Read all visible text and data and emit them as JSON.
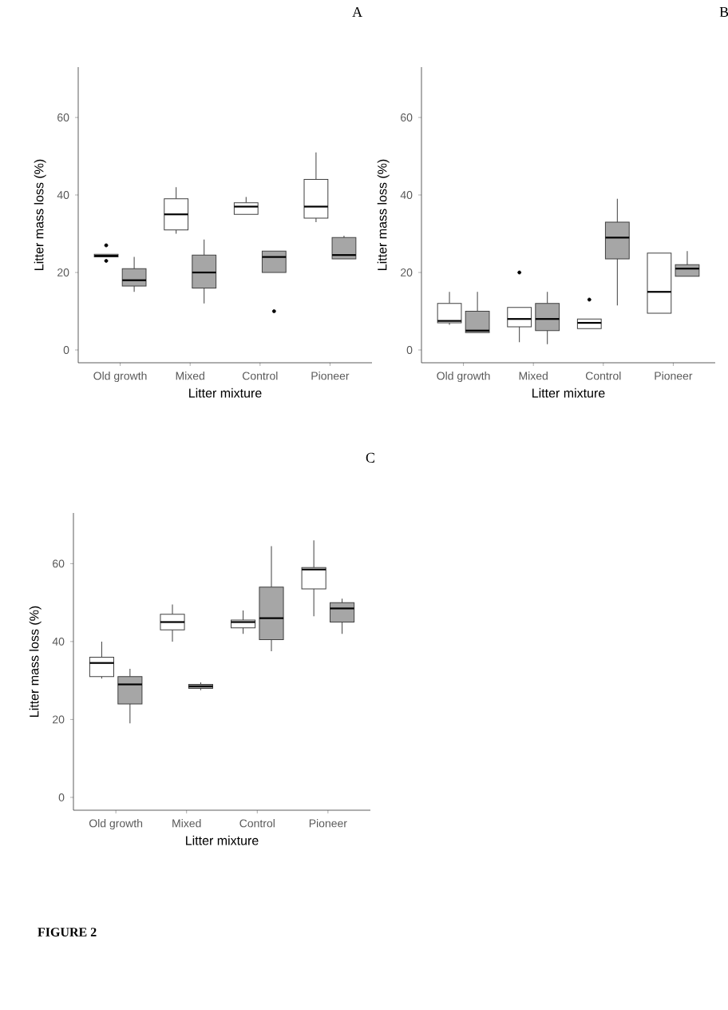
{
  "chart_data": [
    {
      "type": "box",
      "title": "A",
      "xlabel": "Litter mixture",
      "ylabel": "Litter mass loss (%)",
      "categories": [
        "Old growth",
        "Mixed",
        "Control",
        "Pioneer"
      ],
      "ylim": [
        -3.3,
        73
      ],
      "yticks": [
        0,
        20,
        40,
        60
      ],
      "series": [
        {
          "color": "#ffffff",
          "boxes": [
            {
              "low": 24,
              "q1": 24,
              "median": 24.3,
              "q3": 24.7,
              "high": 24.7,
              "outliers": [
                27,
                23
              ]
            },
            {
              "low": 30,
              "q1": 31,
              "median": 35,
              "q3": 39,
              "high": 42
            },
            {
              "low": 35,
              "q1": 35,
              "median": 37,
              "q3": 38,
              "high": 39.5
            },
            {
              "low": 33,
              "q1": 34,
              "median": 37,
              "q3": 44,
              "high": 51
            }
          ]
        },
        {
          "color": "#a6a6a6",
          "boxes": [
            {
              "low": 15,
              "q1": 16.5,
              "median": 18,
              "q3": 21,
              "high": 24
            },
            {
              "low": 12,
              "q1": 16,
              "median": 20,
              "q3": 24.5,
              "high": 28.5
            },
            {
              "low": 20,
              "q1": 20,
              "median": 24,
              "q3": 25.5,
              "high": 25.5,
              "outliers": [
                10
              ]
            },
            {
              "low": 23.5,
              "q1": 23.5,
              "median": 24.5,
              "q3": 29,
              "high": 29.5
            }
          ]
        }
      ]
    },
    {
      "type": "box",
      "title": "B",
      "xlabel": "Litter mixture",
      "ylabel": "Litter mass loss (%)",
      "categories": [
        "Old growth",
        "Mixed",
        "Control",
        "Pioneer"
      ],
      "ylim": [
        -3.3,
        73
      ],
      "yticks": [
        0,
        20,
        40,
        60
      ],
      "series": [
        {
          "color": "#ffffff",
          "boxes": [
            {
              "low": 6.5,
              "q1": 7,
              "median": 7.5,
              "q3": 12,
              "high": 15
            },
            {
              "low": 2,
              "q1": 6,
              "median": 8,
              "q3": 11,
              "high": 11,
              "outliers": [
                20
              ]
            },
            {
              "low": 5.5,
              "q1": 5.5,
              "median": 7,
              "q3": 8,
              "high": 8,
              "outliers": [
                13
              ]
            },
            {
              "low": 9.5,
              "q1": 9.5,
              "median": 15,
              "q3": 25,
              "high": 25
            }
          ]
        },
        {
          "color": "#a6a6a6",
          "boxes": [
            {
              "low": 4.5,
              "q1": 4.5,
              "median": 5,
              "q3": 10,
              "high": 15
            },
            {
              "low": 1.5,
              "q1": 5,
              "median": 8,
              "q3": 12,
              "high": 15
            },
            {
              "low": 11.5,
              "q1": 23.5,
              "median": 29,
              "q3": 33,
              "high": 39
            },
            {
              "low": 19,
              "q1": 19,
              "median": 21,
              "q3": 22,
              "high": 25.5
            }
          ]
        }
      ]
    },
    {
      "type": "box",
      "title": "C",
      "xlabel": "Litter mixture",
      "ylabel": "Litter mass loss (%)",
      "categories": [
        "Old growth",
        "Mixed",
        "Control",
        "Pioneer"
      ],
      "ylim": [
        -3.3,
        73
      ],
      "yticks": [
        0,
        20,
        40,
        60
      ],
      "annotations": [
        "FIGURE 2"
      ],
      "series": [
        {
          "color": "#ffffff",
          "boxes": [
            {
              "low": 30.5,
              "q1": 31,
              "median": 34.5,
              "q3": 36,
              "high": 40
            },
            {
              "low": 40,
              "q1": 43,
              "median": 45,
              "q3": 47,
              "high": 49.5
            },
            {
              "low": 42,
              "q1": 43.5,
              "median": 45,
              "q3": 45.5,
              "high": 48
            },
            {
              "low": 46.5,
              "q1": 53.5,
              "median": 58.5,
              "q3": 59,
              "high": 66
            }
          ]
        },
        {
          "color": "#a6a6a6",
          "boxes": [
            {
              "low": 19,
              "q1": 24,
              "median": 29,
              "q3": 31,
              "high": 33
            },
            {
              "low": 27.5,
              "q1": 28,
              "median": 28.5,
              "q3": 29,
              "high": 29.5
            },
            {
              "low": 37.5,
              "q1": 40.5,
              "median": 46,
              "q3": 54,
              "high": 64.5
            },
            {
              "low": 42,
              "q1": 45,
              "median": 48.5,
              "q3": 50,
              "high": 51
            }
          ]
        }
      ]
    }
  ]
}
